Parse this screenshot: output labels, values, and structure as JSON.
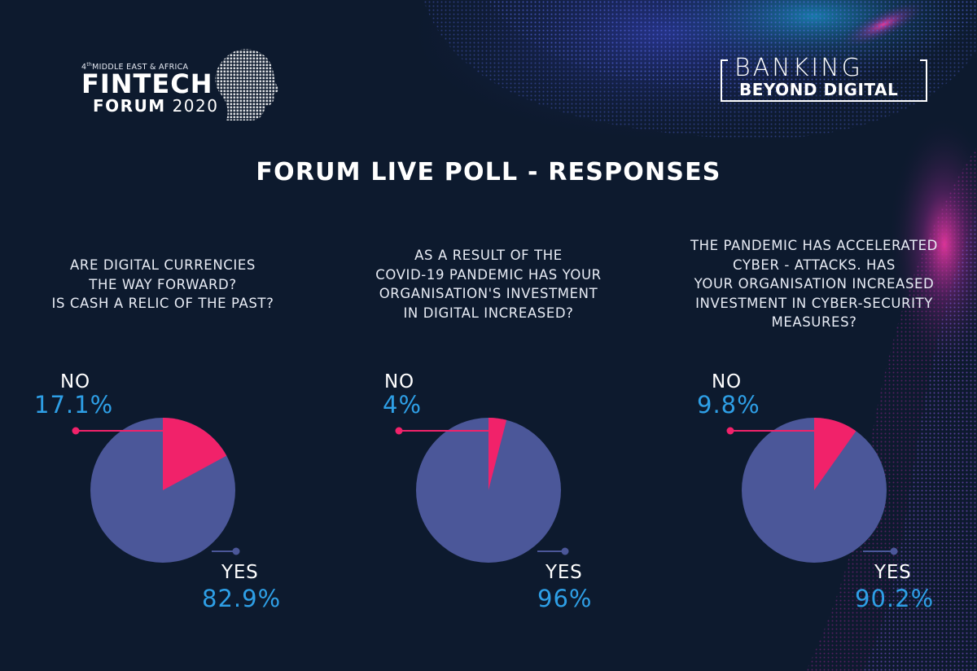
{
  "logo_left": {
    "edition": "4",
    "edition_suffix": "th",
    "subtitle": "MIDDLE EAST & AFRICA",
    "line1": "FINTECH",
    "line2_bold": "FORUM",
    "line2_year": "2020"
  },
  "logo_right": {
    "line1": "BANKING",
    "line2": "BEYOND DIGITAL"
  },
  "title": "FORUM LIVE POLL - RESPONSES",
  "colors": {
    "background": "#0d1a2e",
    "yes_slice": "#4b5799",
    "no_slice": "#f1226a",
    "percent_text": "#2e9fe6"
  },
  "chart_data": [
    {
      "type": "pie",
      "title": "ARE DIGITAL CURRENCIES\nTHE WAY FORWARD?\nIS CASH A RELIC OF THE PAST?",
      "slices": [
        {
          "label": "NO",
          "value": 17.1,
          "display": "17.1%"
        },
        {
          "label": "YES",
          "value": 82.9,
          "display": "82.9%"
        }
      ]
    },
    {
      "type": "pie",
      "title": "AS A RESULT OF THE\nCOVID-19 PANDEMIC HAS YOUR\nORGANISATION'S INVESTMENT\nIN DIGITAL INCREASED?",
      "slices": [
        {
          "label": "NO",
          "value": 4,
          "display": "4%"
        },
        {
          "label": "YES",
          "value": 96,
          "display": "96%"
        }
      ]
    },
    {
      "type": "pie",
      "title": "THE PANDEMIC HAS ACCELERATED\nCYBER - ATTACKS. HAS\nYOUR ORGANISATION INCREASED\nINVESTMENT IN CYBER-SECURITY\nMEASURES?",
      "slices": [
        {
          "label": "NO",
          "value": 9.8,
          "display": "9.8%"
        },
        {
          "label": "YES",
          "value": 90.2,
          "display": "90.2%"
        }
      ]
    }
  ]
}
